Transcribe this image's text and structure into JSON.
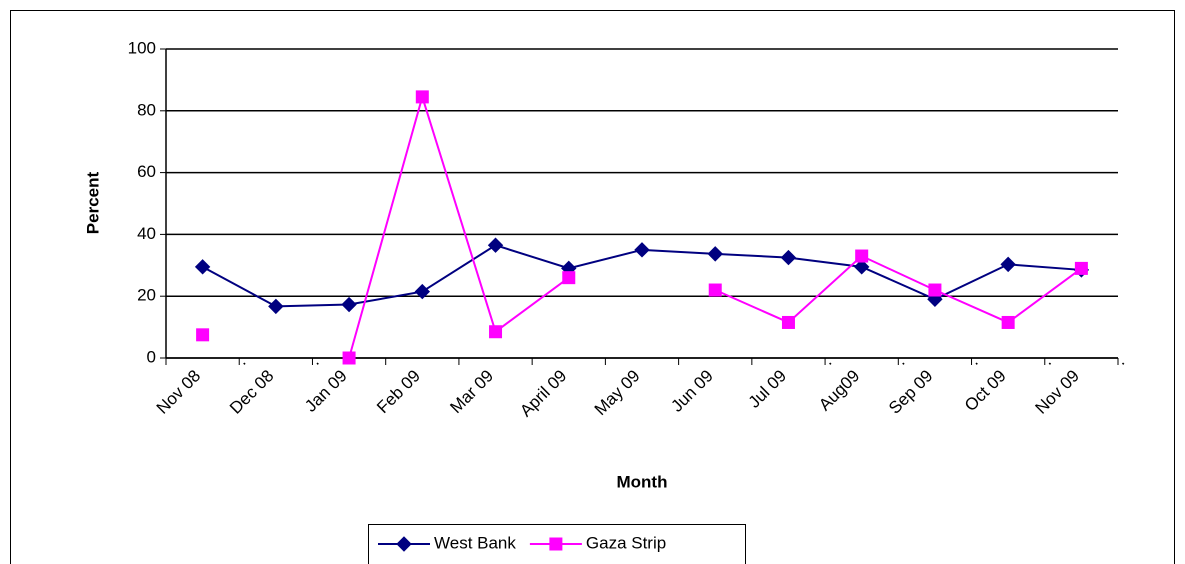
{
  "chart_data": {
    "type": "line",
    "x_label": "Month",
    "y_label": "Percent",
    "categories": [
      "Nov 08\n.",
      "Dec 08\n.",
      "Jan 09",
      "Feb 09",
      "Mar 09",
      "April 09",
      "May 09",
      "Jun 09",
      "Jul 09\n.",
      "Aug09\n.",
      "Sep 09\n.",
      "Oct 09\n.",
      "Nov 09\n."
    ],
    "series": [
      {
        "name": "West Bank",
        "color": "#000080",
        "marker": "diamond",
        "values": [
          29.5,
          16.7,
          17.3,
          21.5,
          36.5,
          29,
          35,
          33.7,
          32.5,
          29.5,
          19,
          30.3,
          28.5
        ]
      },
      {
        "name": "Gaza Strip",
        "color": "#ff00ff",
        "marker": "square",
        "values": [
          7.5,
          null,
          0,
          84.5,
          8.5,
          26,
          null,
          22,
          11.5,
          33,
          22,
          11.5,
          29
        ]
      }
    ],
    "ylim": [
      0,
      100
    ],
    "yticks": [
      0,
      20,
      40,
      60,
      80,
      100
    ],
    "grid": true,
    "legend": "bottom"
  }
}
